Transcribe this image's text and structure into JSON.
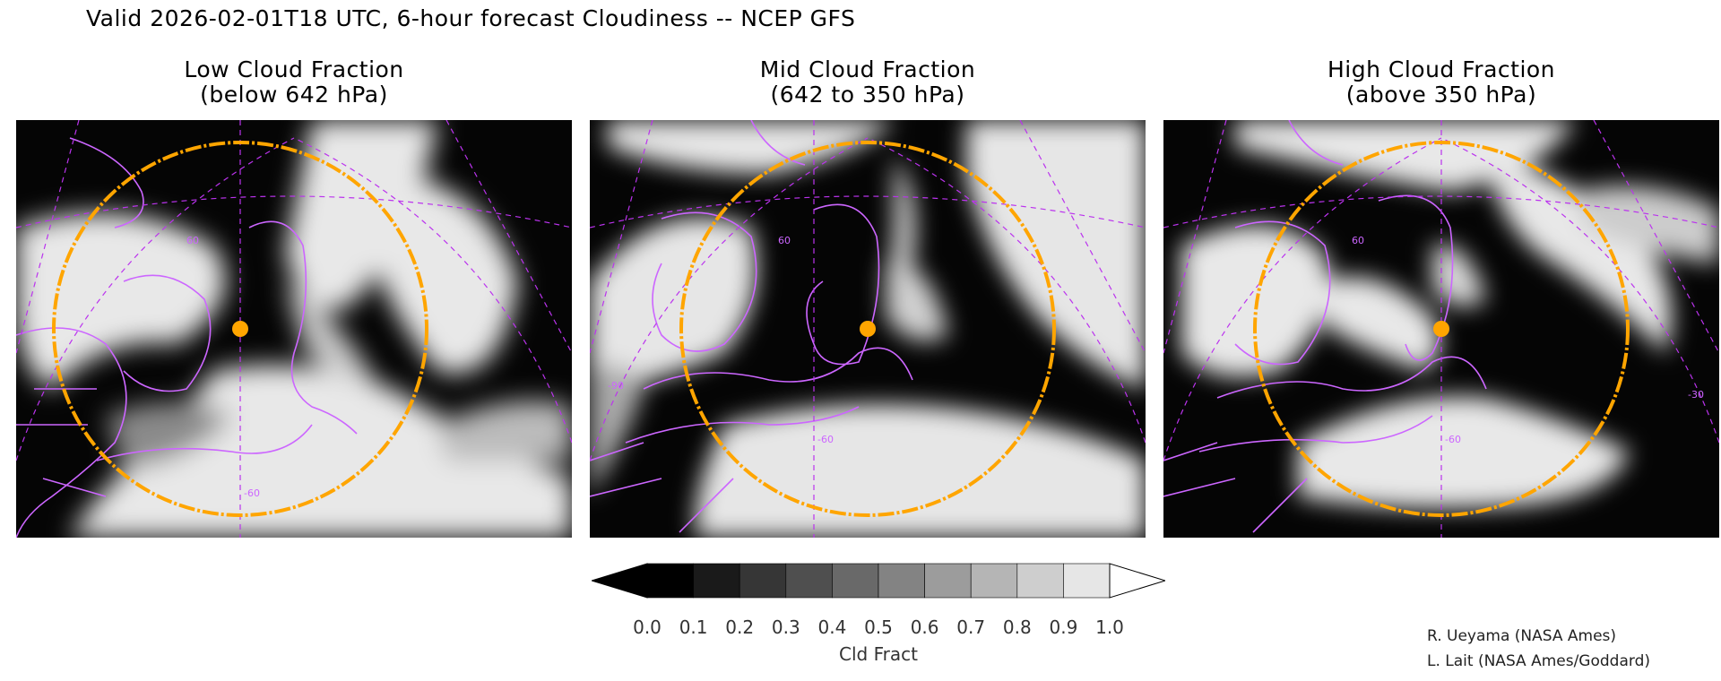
{
  "title": "Valid 2026-02-01T18 UTC, 6-hour forecast Cloudiness -- NCEP GFS",
  "panels": [
    {
      "title_line1": "Low Cloud Fraction",
      "title_line2": "(below 642 hPa)"
    },
    {
      "title_line1": "Mid Cloud Fraction",
      "title_line2": "(642 to 350 hPa)"
    },
    {
      "title_line1": "High Cloud Fraction",
      "title_line2": "(above 350 hPa)"
    }
  ],
  "graticule_labels": {
    "lat": "60",
    "lon_left": "-90",
    "lon_mid": "-60",
    "lon_right": "-30"
  },
  "colorbar": {
    "label": "Cld Fract",
    "ticks": [
      "0.0",
      "0.1",
      "0.2",
      "0.3",
      "0.4",
      "0.5",
      "0.6",
      "0.7",
      "0.8",
      "0.9",
      "1.0"
    ],
    "colors": [
      "#000000",
      "#1a1a1a",
      "#363636",
      "#4f4f4f",
      "#696969",
      "#838383",
      "#9c9c9c",
      "#b5b5b5",
      "#cecece",
      "#e6e6e6"
    ]
  },
  "colors": {
    "range_ring": "#ffa500",
    "map_lines": "#cc66ff",
    "background": "#ffffff"
  },
  "credits": [
    "R. Ueyama (NASA Ames)",
    "L. Lait (NASA Ames/Goddard)"
  ]
}
